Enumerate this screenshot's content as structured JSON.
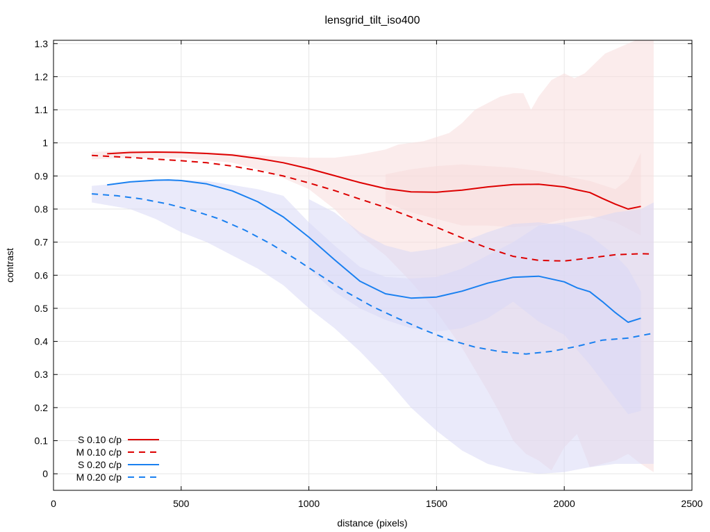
{
  "chart_data": {
    "type": "line",
    "title": "lensgrid_tilt_iso400",
    "xlabel": "distance (pixels)",
    "ylabel": "contrast",
    "xlim": [
      0,
      2500
    ],
    "ylim": [
      -0.05,
      1.31
    ],
    "x_ticks": [
      0,
      500,
      1000,
      1500,
      2000,
      2500
    ],
    "y_ticks": [
      0,
      0.1,
      0.2,
      0.3,
      0.4,
      0.5,
      0.6,
      0.7,
      0.8,
      0.9,
      1,
      1.1,
      1.2,
      1.3
    ],
    "x_tick_labels": [
      "0",
      "500",
      "1000",
      "1500",
      "2000",
      "2500"
    ],
    "y_tick_labels": [
      "0",
      "0.1",
      "0.2",
      "0.3",
      "0.4",
      "0.5",
      "0.6",
      "0.7",
      "0.8",
      "0.9",
      "1",
      "1.1",
      "1.2",
      "1.3"
    ],
    "grid": true,
    "legend_position": "bottom-left",
    "colors": {
      "red": "#dd0000",
      "blue": "#1a80f0",
      "red_band": "#f8dcdc",
      "blue_band": "#d9d9f5"
    },
    "bands": [
      {
        "color": "red",
        "upper": [
          [
            150,
            0.972
          ],
          [
            300,
            0.978
          ],
          [
            500,
            0.975
          ],
          [
            700,
            0.968
          ],
          [
            850,
            0.96
          ],
          [
            1000,
            0.955
          ],
          [
            1100,
            0.955
          ],
          [
            1200,
            0.965
          ],
          [
            1300,
            0.98
          ],
          [
            1350,
            0.995
          ],
          [
            1450,
            1.005
          ],
          [
            1550,
            1.03
          ],
          [
            1600,
            1.06
          ],
          [
            1650,
            1.1
          ],
          [
            1700,
            1.12
          ],
          [
            1750,
            1.14
          ],
          [
            1800,
            1.15
          ],
          [
            1840,
            1.15
          ],
          [
            1870,
            1.1
          ],
          [
            1900,
            1.14
          ],
          [
            1950,
            1.19
          ],
          [
            2000,
            1.21
          ],
          [
            2040,
            1.195
          ],
          [
            2080,
            1.21
          ],
          [
            2120,
            1.24
          ],
          [
            2160,
            1.27
          ],
          [
            2220,
            1.29
          ],
          [
            2280,
            1.31
          ],
          [
            2350,
            1.31
          ]
        ],
        "lower": [
          [
            150,
            0.95
          ],
          [
            300,
            0.955
          ],
          [
            500,
            0.955
          ],
          [
            700,
            0.94
          ],
          [
            850,
            0.91
          ],
          [
            1000,
            0.86
          ],
          [
            1100,
            0.8
          ],
          [
            1200,
            0.72
          ],
          [
            1300,
            0.66
          ],
          [
            1400,
            0.58
          ],
          [
            1500,
            0.49
          ],
          [
            1600,
            0.38
          ],
          [
            1700,
            0.25
          ],
          [
            1750,
            0.18
          ],
          [
            1800,
            0.1
          ],
          [
            1850,
            0.06
          ],
          [
            1900,
            0.04
          ],
          [
            1950,
            0.01
          ],
          [
            2000,
            0.08
          ],
          [
            2050,
            0.12
          ],
          [
            2100,
            0.02
          ],
          [
            2150,
            0.03
          ],
          [
            2200,
            0.04
          ],
          [
            2250,
            0.06
          ],
          [
            2300,
            0.03
          ],
          [
            2350,
            0.005
          ]
        ]
      },
      {
        "color": "red",
        "upper": [
          [
            1300,
            0.905
          ],
          [
            1400,
            0.92
          ],
          [
            1500,
            0.93
          ],
          [
            1600,
            0.935
          ],
          [
            1700,
            0.93
          ],
          [
            1800,
            0.925
          ],
          [
            1900,
            0.915
          ],
          [
            2000,
            0.9
          ],
          [
            2100,
            0.885
          ],
          [
            2200,
            0.86
          ],
          [
            2250,
            0.89
          ],
          [
            2300,
            0.97
          ]
        ],
        "lower": [
          [
            1300,
            0.82
          ],
          [
            1400,
            0.79
          ],
          [
            1500,
            0.77
          ],
          [
            1600,
            0.75
          ],
          [
            1700,
            0.75
          ],
          [
            1800,
            0.745
          ],
          [
            1900,
            0.75
          ],
          [
            2000,
            0.77
          ],
          [
            2100,
            0.78
          ],
          [
            2200,
            0.76
          ],
          [
            2250,
            0.74
          ],
          [
            2300,
            0.72
          ]
        ]
      },
      {
        "color": "blue",
        "upper": [
          [
            150,
            0.87
          ],
          [
            300,
            0.88
          ],
          [
            450,
            0.89
          ],
          [
            600,
            0.885
          ],
          [
            800,
            0.86
          ],
          [
            900,
            0.84
          ],
          [
            1000,
            0.76
          ],
          [
            1100,
            0.69
          ],
          [
            1200,
            0.625
          ],
          [
            1300,
            0.595
          ],
          [
            1400,
            0.59
          ],
          [
            1500,
            0.595
          ],
          [
            1600,
            0.62
          ],
          [
            1700,
            0.66
          ],
          [
            1800,
            0.7
          ],
          [
            1900,
            0.75
          ],
          [
            2000,
            0.76
          ],
          [
            2100,
            0.77
          ],
          [
            2200,
            0.79
          ],
          [
            2300,
            0.8
          ],
          [
            2350,
            0.82
          ]
        ],
        "lower": [
          [
            150,
            0.82
          ],
          [
            300,
            0.8
          ],
          [
            400,
            0.77
          ],
          [
            500,
            0.73
          ],
          [
            600,
            0.7
          ],
          [
            700,
            0.66
          ],
          [
            800,
            0.62
          ],
          [
            900,
            0.57
          ],
          [
            1000,
            0.5
          ],
          [
            1100,
            0.44
          ],
          [
            1200,
            0.37
          ],
          [
            1300,
            0.29
          ],
          [
            1400,
            0.2
          ],
          [
            1500,
            0.13
          ],
          [
            1600,
            0.07
          ],
          [
            1700,
            0.03
          ],
          [
            1800,
            0.01
          ],
          [
            1900,
            0.0
          ],
          [
            2000,
            0.005
          ],
          [
            2100,
            0.02
          ],
          [
            2200,
            0.03
          ],
          [
            2300,
            0.03
          ],
          [
            2350,
            0.03
          ]
        ]
      },
      {
        "color": "blue",
        "upper": [
          [
            1000,
            0.83
          ],
          [
            1100,
            0.79
          ],
          [
            1200,
            0.73
          ],
          [
            1300,
            0.69
          ],
          [
            1400,
            0.67
          ],
          [
            1500,
            0.68
          ],
          [
            1600,
            0.7
          ],
          [
            1700,
            0.73
          ],
          [
            1800,
            0.755
          ],
          [
            1900,
            0.76
          ],
          [
            2000,
            0.75
          ],
          [
            2100,
            0.72
          ],
          [
            2200,
            0.66
          ],
          [
            2250,
            0.62
          ],
          [
            2300,
            0.55
          ]
        ],
        "lower": [
          [
            1000,
            0.62
          ],
          [
            1100,
            0.55
          ],
          [
            1200,
            0.5
          ],
          [
            1300,
            0.465
          ],
          [
            1400,
            0.44
          ],
          [
            1500,
            0.43
          ],
          [
            1600,
            0.44
          ],
          [
            1700,
            0.47
          ],
          [
            1800,
            0.52
          ],
          [
            1900,
            0.46
          ],
          [
            2000,
            0.42
          ],
          [
            2100,
            0.33
          ],
          [
            2200,
            0.23
          ],
          [
            2250,
            0.18
          ],
          [
            2300,
            0.19
          ]
        ]
      }
    ],
    "series": [
      {
        "name": "S 0.10 c/p",
        "color": "red",
        "dash": "solid",
        "points": [
          [
            210,
            0.967
          ],
          [
            300,
            0.971
          ],
          [
            400,
            0.972
          ],
          [
            500,
            0.971
          ],
          [
            600,
            0.968
          ],
          [
            700,
            0.963
          ],
          [
            800,
            0.953
          ],
          [
            900,
            0.94
          ],
          [
            1000,
            0.922
          ],
          [
            1100,
            0.901
          ],
          [
            1200,
            0.88
          ],
          [
            1300,
            0.862
          ],
          [
            1400,
            0.852
          ],
          [
            1500,
            0.851
          ],
          [
            1600,
            0.857
          ],
          [
            1700,
            0.867
          ],
          [
            1800,
            0.874
          ],
          [
            1900,
            0.875
          ],
          [
            2000,
            0.867
          ],
          [
            2050,
            0.858
          ],
          [
            2100,
            0.85
          ],
          [
            2150,
            0.832
          ],
          [
            2200,
            0.815
          ],
          [
            2250,
            0.8
          ],
          [
            2300,
            0.808
          ]
        ]
      },
      {
        "name": "M 0.10 c/p",
        "color": "red",
        "dash": "dashed",
        "points": [
          [
            150,
            0.962
          ],
          [
            300,
            0.956
          ],
          [
            400,
            0.951
          ],
          [
            500,
            0.946
          ],
          [
            600,
            0.94
          ],
          [
            700,
            0.93
          ],
          [
            800,
            0.916
          ],
          [
            900,
            0.9
          ],
          [
            1000,
            0.879
          ],
          [
            1100,
            0.856
          ],
          [
            1200,
            0.83
          ],
          [
            1300,
            0.805
          ],
          [
            1400,
            0.776
          ],
          [
            1500,
            0.745
          ],
          [
            1600,
            0.713
          ],
          [
            1700,
            0.682
          ],
          [
            1800,
            0.657
          ],
          [
            1900,
            0.645
          ],
          [
            2000,
            0.643
          ],
          [
            2100,
            0.652
          ],
          [
            2200,
            0.662
          ],
          [
            2300,
            0.665
          ],
          [
            2350,
            0.664
          ]
        ]
      },
      {
        "name": "S 0.20 c/p",
        "color": "blue",
        "dash": "solid",
        "points": [
          [
            210,
            0.873
          ],
          [
            300,
            0.882
          ],
          [
            400,
            0.887
          ],
          [
            450,
            0.888
          ],
          [
            500,
            0.886
          ],
          [
            600,
            0.876
          ],
          [
            700,
            0.855
          ],
          [
            800,
            0.822
          ],
          [
            900,
            0.776
          ],
          [
            1000,
            0.715
          ],
          [
            1100,
            0.647
          ],
          [
            1200,
            0.582
          ],
          [
            1300,
            0.544
          ],
          [
            1400,
            0.531
          ],
          [
            1500,
            0.534
          ],
          [
            1600,
            0.552
          ],
          [
            1700,
            0.576
          ],
          [
            1800,
            0.594
          ],
          [
            1900,
            0.597
          ],
          [
            2000,
            0.58
          ],
          [
            2050,
            0.562
          ],
          [
            2100,
            0.55
          ],
          [
            2150,
            0.52
          ],
          [
            2200,
            0.487
          ],
          [
            2250,
            0.458
          ],
          [
            2300,
            0.47
          ]
        ]
      },
      {
        "name": "M 0.20 c/p",
        "color": "blue",
        "dash": "dashed",
        "points": [
          [
            150,
            0.846
          ],
          [
            250,
            0.84
          ],
          [
            350,
            0.83
          ],
          [
            450,
            0.815
          ],
          [
            550,
            0.795
          ],
          [
            650,
            0.77
          ],
          [
            750,
            0.736
          ],
          [
            850,
            0.695
          ],
          [
            950,
            0.648
          ],
          [
            1050,
            0.597
          ],
          [
            1150,
            0.548
          ],
          [
            1250,
            0.505
          ],
          [
            1350,
            0.469
          ],
          [
            1450,
            0.435
          ],
          [
            1550,
            0.405
          ],
          [
            1650,
            0.383
          ],
          [
            1750,
            0.369
          ],
          [
            1850,
            0.362
          ],
          [
            1950,
            0.37
          ],
          [
            2050,
            0.385
          ],
          [
            2150,
            0.404
          ],
          [
            2250,
            0.41
          ],
          [
            2350,
            0.425
          ]
        ]
      }
    ]
  }
}
